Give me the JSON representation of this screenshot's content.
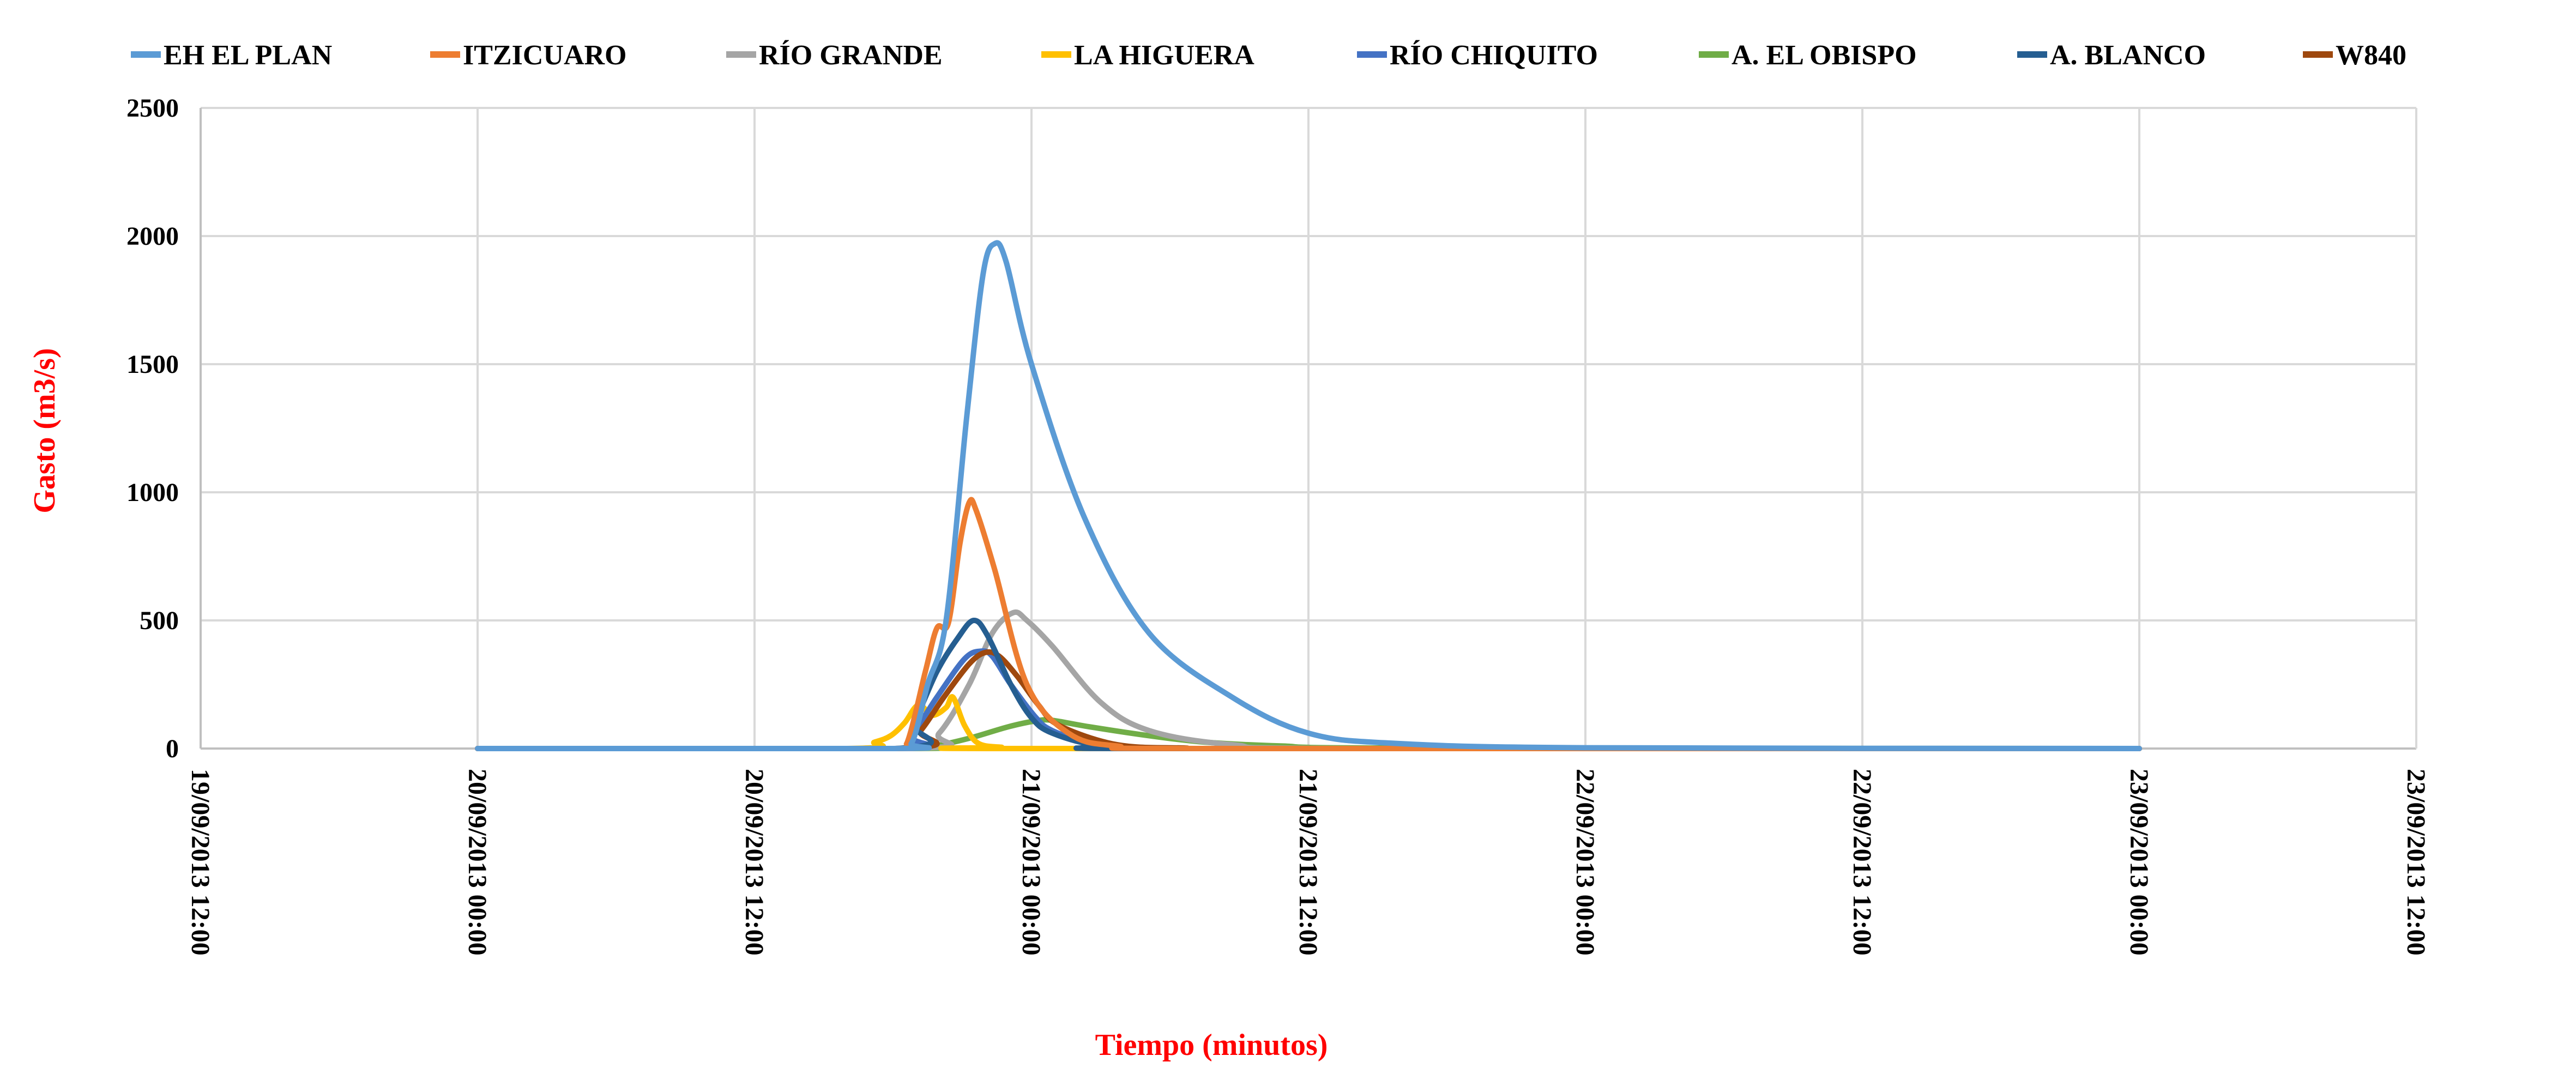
{
  "chart_data": {
    "type": "line",
    "title": "",
    "xlabel": "Tiempo (minutos)",
    "ylabel": "Gasto (m3/s)",
    "ylim": [
      0,
      2500
    ],
    "yticks": [
      "0",
      "500",
      "1000",
      "1500",
      "2000",
      "2500"
    ],
    "xlim_hours_from_start": [
      0,
      96
    ],
    "xticks": [
      "19/09/2013 12:00",
      "20/09/2013 00:00",
      "20/09/2013 12:00",
      "21/09/2013 00:00",
      "21/09/2013 12:00",
      "22/09/2013 00:00",
      "22/09/2013 12:00",
      "23/09/2013 00:00",
      "23/09/2013 12:00"
    ],
    "grid": true,
    "legend_position": "top",
    "label_color": "#FF0000",
    "series": [
      {
        "name": "EH EL PLAN",
        "color": "#5B9BD5",
        "points": [
          [
            12,
            0
          ],
          [
            30,
            0
          ],
          [
            30.8,
            20
          ],
          [
            31.5,
            250
          ],
          [
            32.3,
            500
          ],
          [
            33.2,
            1300
          ],
          [
            33.9,
            1850
          ],
          [
            34.4,
            1970
          ],
          [
            34.9,
            1900
          ],
          [
            36,
            1500
          ],
          [
            38.3,
            900
          ],
          [
            41.1,
            450
          ],
          [
            44.7,
            200
          ],
          [
            48,
            60
          ],
          [
            51.8,
            20
          ],
          [
            60,
            3
          ],
          [
            84,
            0
          ]
        ]
      },
      {
        "name": "ITZICUARO",
        "color": "#ED7D31",
        "points": [
          [
            12,
            0
          ],
          [
            30,
            0
          ],
          [
            30.6,
            20
          ],
          [
            31.4,
            300
          ],
          [
            31.9,
            470
          ],
          [
            32.4,
            490
          ],
          [
            32.9,
            800
          ],
          [
            33.3,
            960
          ],
          [
            33.6,
            930
          ],
          [
            34.4,
            700
          ],
          [
            35.8,
            250
          ],
          [
            37.6,
            60
          ],
          [
            39.7,
            10
          ],
          [
            44,
            0
          ],
          [
            84,
            0
          ]
        ]
      },
      {
        "name": "RÍO GRANDE",
        "color": "#A5A5A5",
        "points": [
          [
            12,
            0
          ],
          [
            30.8,
            0
          ],
          [
            32,
            60
          ],
          [
            33.3,
            250
          ],
          [
            34.3,
            450
          ],
          [
            35.2,
            530
          ],
          [
            35.8,
            500
          ],
          [
            36.9,
            400
          ],
          [
            39,
            180
          ],
          [
            41.1,
            70
          ],
          [
            44.7,
            15
          ],
          [
            50,
            0
          ],
          [
            84,
            0
          ]
        ]
      },
      {
        "name": "LA HIGUERA",
        "color": "#FFC000",
        "points": [
          [
            12,
            0
          ],
          [
            28,
            0
          ],
          [
            29.2,
            25
          ],
          [
            29.9,
            50
          ],
          [
            30.5,
            100
          ],
          [
            31.1,
            170
          ],
          [
            31.7,
            130
          ],
          [
            32.3,
            160
          ],
          [
            32.6,
            200
          ],
          [
            33.1,
            90
          ],
          [
            33.7,
            20
          ],
          [
            34.7,
            5
          ],
          [
            36,
            0
          ],
          [
            84,
            0
          ]
        ]
      },
      {
        "name": "RÍO CHIQUITO",
        "color": "#4472C4",
        "points": [
          [
            12,
            0
          ],
          [
            30.1,
            0
          ],
          [
            30.8,
            50
          ],
          [
            31.9,
            200
          ],
          [
            33.1,
            350
          ],
          [
            33.8,
            380
          ],
          [
            34.3,
            360
          ],
          [
            35.1,
            250
          ],
          [
            36.2,
            120
          ],
          [
            36.9,
            70
          ],
          [
            38.5,
            20
          ],
          [
            39.7,
            5
          ],
          [
            42,
            0
          ],
          [
            84,
            0
          ]
        ]
      },
      {
        "name": "A. EL OBISPO",
        "color": "#70AD47",
        "points": [
          [
            12,
            0
          ],
          [
            30.5,
            0
          ],
          [
            31.8,
            10
          ],
          [
            33.3,
            40
          ],
          [
            35,
            85
          ],
          [
            36.2,
            108
          ],
          [
            36.9,
            110
          ],
          [
            38.5,
            85
          ],
          [
            41.1,
            50
          ],
          [
            43.5,
            25
          ],
          [
            46.8,
            10
          ],
          [
            52,
            2
          ],
          [
            84,
            0
          ]
        ]
      },
      {
        "name": "A. BLANCO",
        "color": "#255E91",
        "points": [
          [
            12,
            0
          ],
          [
            30.1,
            0
          ],
          [
            30.9,
            100
          ],
          [
            31.9,
            300
          ],
          [
            32.8,
            430
          ],
          [
            33.5,
            500
          ],
          [
            34.1,
            440
          ],
          [
            35.1,
            250
          ],
          [
            36,
            120
          ],
          [
            36.9,
            60
          ],
          [
            39,
            10
          ],
          [
            42,
            0
          ],
          [
            84,
            0
          ]
        ]
      },
      {
        "name": "W840",
        "color": "#9E480E",
        "points": [
          [
            12,
            0
          ],
          [
            30.3,
            0
          ],
          [
            31.2,
            70
          ],
          [
            32.2,
            200
          ],
          [
            33.3,
            330
          ],
          [
            34,
            375
          ],
          [
            34.6,
            360
          ],
          [
            35.4,
            280
          ],
          [
            36.3,
            170
          ],
          [
            37.2,
            90
          ],
          [
            39.7,
            15
          ],
          [
            42.6,
            2
          ],
          [
            46,
            0
          ],
          [
            84,
            0
          ]
        ]
      }
    ]
  }
}
